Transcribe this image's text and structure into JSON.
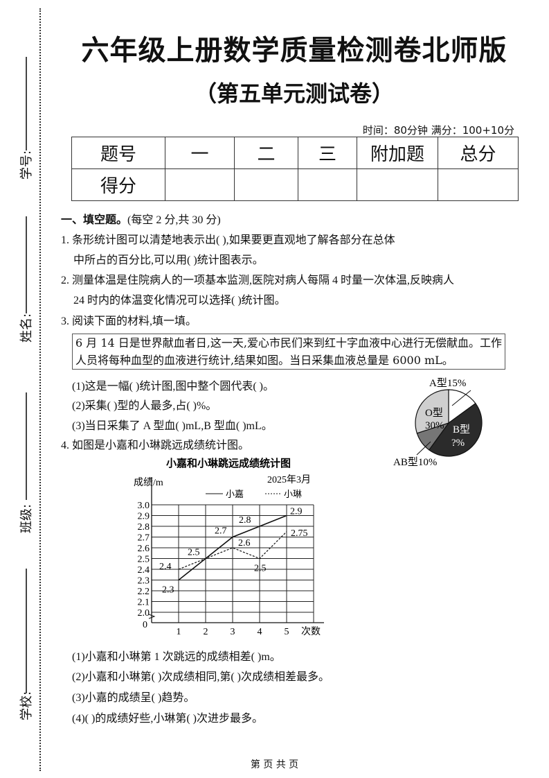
{
  "header": {
    "title": "六年级上册数学质量检测卷北师版",
    "subtitle": "（第五单元测试卷）",
    "time_info": "时间：80分钟  满分：100+10分"
  },
  "side_fields": [
    {
      "label": "学号:"
    },
    {
      "label": "姓名:"
    },
    {
      "label": "班级:"
    },
    {
      "label": "学校:"
    }
  ],
  "score_table": {
    "header": [
      "题号",
      "一",
      "二",
      "三",
      "附加题",
      "总分"
    ],
    "row_label": "得分"
  },
  "section1": {
    "heading": "一、填空题。",
    "note": "(每空 2 分,共 30 分)",
    "q1_line1": "1. 条形统计图可以清楚地表示出(              ),如果要更直观地了解各部分在总体",
    "q1_line2": "中所占的百分比,可以用(          )统计图表示。",
    "q2_line1": "2. 测量体温是住院病人的一项基本监测,医院对病人每隔 4 时量一次体温,反映病人",
    "q2_line2": "24 时内的体温变化情况可以选择(        )统计图。",
    "q3": "3. 阅读下面的材料,填一填。",
    "material": "6 月 14 日是世界献血者日,这一天,爱心市民们来到红十字血液中心进行无偿献血。工作人员将每种血型的血液进行统计,结果如图。当日采集血液总量是 6000 mL。",
    "q3_sub": [
      "(1)这是一幅(          )统计图,图中整个圆代表(                  )。",
      "(2)采集(        )型的人最多,占(        )%。",
      "(3)当日采集了 A 型血(        )mL,B 型血(        )mL。"
    ],
    "q4": "4. 如图是小嘉和小琳跳远成绩统计图。",
    "q4_sub": [
      "(1)小嘉和小琳第 1 次跳远的成绩相差(        )m。",
      "(2)小嘉和小琳第(        )次成绩相同,第(        )次成绩相差最多。",
      "(3)小嘉的成绩呈(        )趋势。",
      "(4)(        )的成绩好些,小琳第(        )次进步最多。"
    ]
  },
  "footer": "第  页  共  页",
  "chart_data": [
    {
      "type": "pie",
      "slices": [
        {
          "label": "A型",
          "value": 15,
          "text": "A型15%",
          "color": "#ffffff"
        },
        {
          "label": "B型",
          "value": null,
          "text_line1": "B型",
          "text_line2": "?%",
          "color": "#2b2b2b"
        },
        {
          "label": "AB型",
          "value": 10,
          "text": "AB型10%",
          "color": "#767676"
        },
        {
          "label": "O型",
          "value": 30,
          "text_line1": "O型",
          "text_line2": "30%",
          "color": "#cfcfcf"
        }
      ]
    },
    {
      "type": "line",
      "title": "小嘉和小琳跳远成绩统计图",
      "date": "2025年3月",
      "ylabel": "成绩/m",
      "xlabel": "次数",
      "x": [
        1,
        2,
        3,
        4,
        5
      ],
      "ylim": [
        2.0,
        3.0
      ],
      "y_break": true,
      "origin_label": "0",
      "yticks": [
        "2.0",
        "2.1",
        "2.2",
        "2.3",
        "2.4",
        "2.5",
        "2.6",
        "2.7",
        "2.8",
        "2.9",
        "3.0"
      ],
      "grid": true,
      "series": [
        {
          "name": "小嘉",
          "style": "solid",
          "values": [
            2.3,
            2.5,
            2.7,
            2.8,
            2.9
          ],
          "labels": [
            "2.3",
            "2.5",
            "2.7",
            "2.8",
            "2.9"
          ]
        },
        {
          "name": "小琳",
          "style": "dashed",
          "values": [
            2.4,
            2.5,
            2.6,
            2.5,
            2.75
          ],
          "labels": [
            "2.4",
            "",
            "2.6",
            "2.5",
            "2.75"
          ]
        }
      ]
    }
  ]
}
